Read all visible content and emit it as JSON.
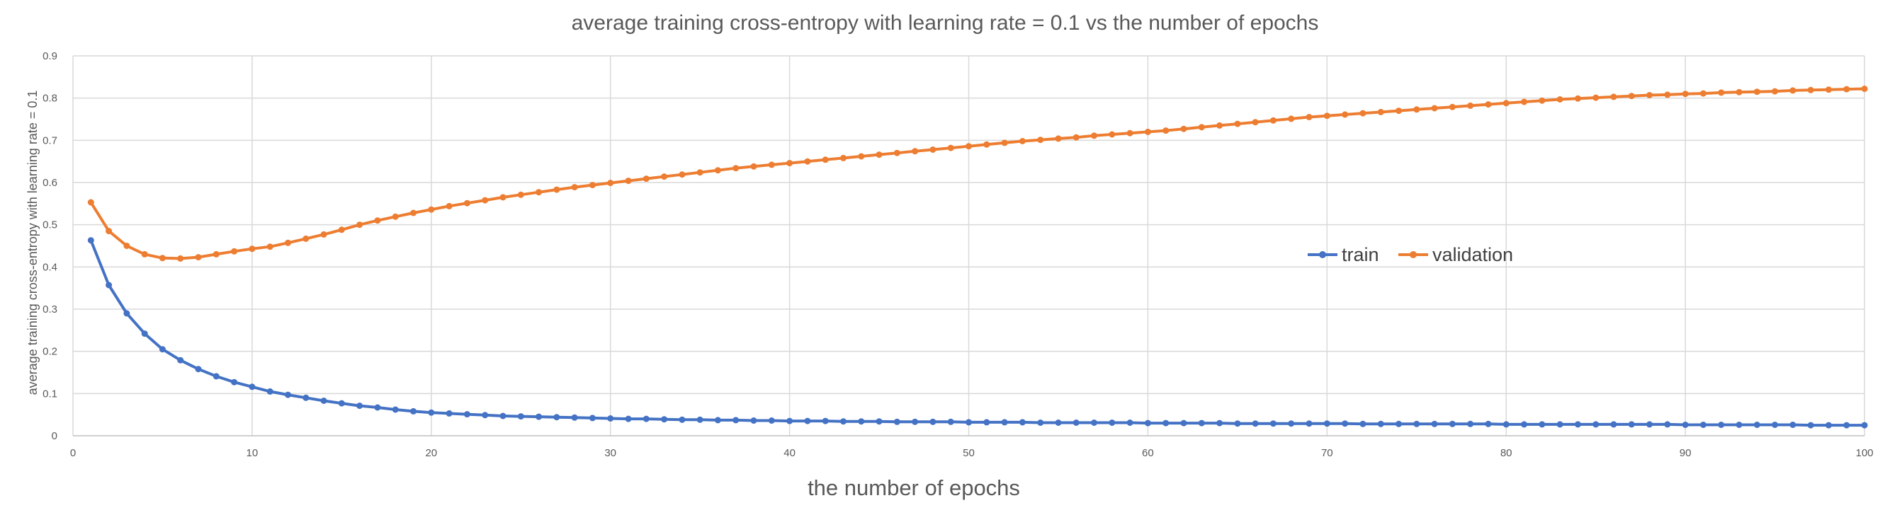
{
  "chart_data": {
    "type": "line",
    "title": "average training cross-entropy with learning rate = 0.1  vs the number of epochs",
    "xlabel": "the number of epochs",
    "ylabel": "average training cross-entropy with learning rate = 0.1",
    "xlim": [
      0,
      100
    ],
    "ylim": [
      0,
      0.9
    ],
    "x_ticks": [
      0,
      10,
      20,
      30,
      40,
      50,
      60,
      70,
      80,
      90,
      100
    ],
    "y_ticks": [
      0,
      0.1,
      0.2,
      0.3,
      0.4,
      0.5,
      0.6,
      0.7,
      0.8,
      0.9
    ],
    "grid": true,
    "legend_position": "center-right",
    "x": [
      1,
      2,
      3,
      4,
      5,
      6,
      7,
      8,
      9,
      10,
      11,
      12,
      13,
      14,
      15,
      16,
      17,
      18,
      19,
      20,
      21,
      22,
      23,
      24,
      25,
      26,
      27,
      28,
      29,
      30,
      31,
      32,
      33,
      34,
      35,
      36,
      37,
      38,
      39,
      40,
      41,
      42,
      43,
      44,
      45,
      46,
      47,
      48,
      49,
      50,
      51,
      52,
      53,
      54,
      55,
      56,
      57,
      58,
      59,
      60,
      61,
      62,
      63,
      64,
      65,
      66,
      67,
      68,
      69,
      70,
      71,
      72,
      73,
      74,
      75,
      76,
      77,
      78,
      79,
      80,
      81,
      82,
      83,
      84,
      85,
      86,
      87,
      88,
      89,
      90,
      91,
      92,
      93,
      94,
      95,
      96,
      97,
      98,
      99,
      100
    ],
    "series": [
      {
        "name": "train",
        "color": "#4472C4",
        "values": [
          0.463,
          0.357,
          0.29,
          0.242,
          0.205,
          0.179,
          0.158,
          0.141,
          0.127,
          0.116,
          0.105,
          0.097,
          0.09,
          0.083,
          0.077,
          0.071,
          0.067,
          0.062,
          0.058,
          0.055,
          0.053,
          0.051,
          0.049,
          0.047,
          0.046,
          0.045,
          0.044,
          0.043,
          0.042,
          0.041,
          0.04,
          0.04,
          0.039,
          0.038,
          0.038,
          0.037,
          0.037,
          0.036,
          0.036,
          0.035,
          0.035,
          0.035,
          0.034,
          0.034,
          0.034,
          0.033,
          0.033,
          0.033,
          0.033,
          0.032,
          0.032,
          0.032,
          0.032,
          0.031,
          0.031,
          0.031,
          0.031,
          0.031,
          0.031,
          0.03,
          0.03,
          0.03,
          0.03,
          0.03,
          0.029,
          0.029,
          0.029,
          0.029,
          0.029,
          0.029,
          0.029,
          0.028,
          0.028,
          0.028,
          0.028,
          0.028,
          0.028,
          0.028,
          0.028,
          0.027,
          0.027,
          0.027,
          0.027,
          0.027,
          0.027,
          0.027,
          0.027,
          0.027,
          0.027,
          0.026,
          0.026,
          0.026,
          0.026,
          0.026,
          0.026,
          0.026,
          0.025,
          0.025,
          0.025,
          0.025
        ]
      },
      {
        "name": "validation",
        "color": "#ED7D31",
        "values": [
          0.553,
          0.485,
          0.45,
          0.43,
          0.421,
          0.42,
          0.423,
          0.43,
          0.437,
          0.443,
          0.448,
          0.457,
          0.467,
          0.477,
          0.488,
          0.5,
          0.51,
          0.519,
          0.528,
          0.536,
          0.544,
          0.551,
          0.558,
          0.565,
          0.571,
          0.577,
          0.583,
          0.589,
          0.594,
          0.599,
          0.604,
          0.609,
          0.614,
          0.619,
          0.624,
          0.629,
          0.634,
          0.638,
          0.642,
          0.646,
          0.65,
          0.654,
          0.658,
          0.662,
          0.666,
          0.67,
          0.674,
          0.678,
          0.682,
          0.686,
          0.69,
          0.694,
          0.698,
          0.701,
          0.704,
          0.707,
          0.711,
          0.714,
          0.717,
          0.72,
          0.723,
          0.727,
          0.731,
          0.735,
          0.739,
          0.743,
          0.747,
          0.751,
          0.755,
          0.758,
          0.761,
          0.764,
          0.767,
          0.77,
          0.773,
          0.776,
          0.779,
          0.782,
          0.785,
          0.788,
          0.791,
          0.794,
          0.797,
          0.799,
          0.801,
          0.803,
          0.805,
          0.807,
          0.808,
          0.81,
          0.811,
          0.813,
          0.814,
          0.815,
          0.816,
          0.818,
          0.819,
          0.82,
          0.821,
          0.822
        ]
      }
    ]
  }
}
